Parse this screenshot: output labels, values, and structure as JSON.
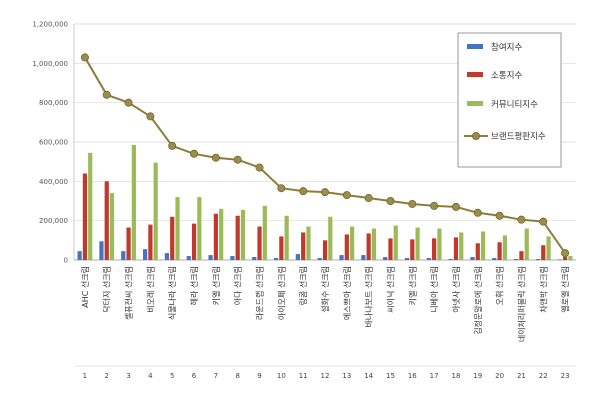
{
  "chart_data": {
    "type": "bar",
    "categories": [
      "AHC 선크림",
      "닥터지 선크림",
      "셀퓨전씨 선크림",
      "비오레 선크림",
      "식물나라 선크림",
      "헤라 선크림",
      "키엘 선크림",
      "아다 선크림",
      "라운드랩 선크림",
      "아이오페 선크림",
      "랑콤 선크림",
      "설화수 선크림",
      "에스쁘아 선크림",
      "바나나보트 선크림",
      "씨이닉 선크림",
      "키엘 선크림",
      "니베아 선크림",
      "아넷사 선크림",
      "김정문알로에 선크림",
      "오휘 선크림",
      "네이처리퍼블릭 선크림",
      "차앤박 선크림",
      "엘로엘 선크림"
    ],
    "index_labels": [
      "1",
      "2",
      "3",
      "4",
      "5",
      "6",
      "7",
      "8",
      "9",
      "10",
      "11",
      "12",
      "13",
      "14",
      "15",
      "16",
      "17",
      "18",
      "19",
      "20",
      "21",
      "22",
      "23"
    ],
    "series": [
      {
        "name": "참여지수",
        "type": "bar",
        "color": "#4472c4",
        "values": [
          45000,
          95000,
          45000,
          55000,
          35000,
          20000,
          25000,
          20000,
          15000,
          10000,
          30000,
          10000,
          25000,
          25000,
          15000,
          10000,
          10000,
          5000,
          15000,
          10000,
          5000,
          5000,
          3000
        ]
      },
      {
        "name": "소통지수",
        "type": "bar",
        "color": "#c0392b",
        "values": [
          440000,
          400000,
          165000,
          180000,
          220000,
          185000,
          235000,
          225000,
          170000,
          120000,
          140000,
          100000,
          130000,
          135000,
          110000,
          105000,
          110000,
          115000,
          85000,
          90000,
          45000,
          75000,
          15000
        ]
      },
      {
        "name": "커뮤니티지수",
        "type": "bar",
        "color": "#9bbb59",
        "values": [
          545000,
          340000,
          585000,
          495000,
          320000,
          320000,
          260000,
          255000,
          275000,
          225000,
          170000,
          220000,
          170000,
          160000,
          175000,
          165000,
          160000,
          140000,
          145000,
          125000,
          160000,
          120000,
          20000
        ]
      },
      {
        "name": "브랜드평판지수",
        "type": "line",
        "color": "#8b7d3a",
        "values": [
          1030000,
          840000,
          800000,
          730000,
          580000,
          540000,
          520000,
          510000,
          470000,
          365000,
          350000,
          345000,
          330000,
          315000,
          300000,
          285000,
          275000,
          270000,
          240000,
          225000,
          205000,
          195000,
          35000
        ]
      }
    ],
    "yticks": [
      "0",
      "200,000",
      "400,000",
      "600,000",
      "800,000",
      "1,000,000",
      "1,200,000"
    ],
    "ylim": [
      0,
      1200000
    ],
    "grid": true,
    "legend_position": "top-right"
  }
}
